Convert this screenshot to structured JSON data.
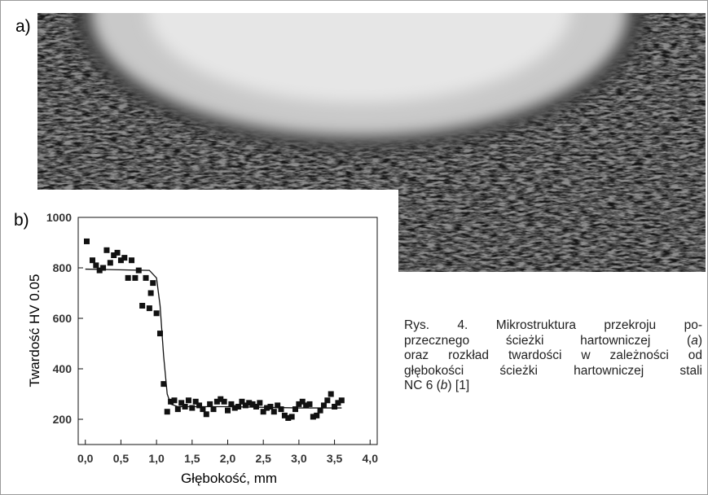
{
  "figure": {
    "label_a": "a)",
    "label_b": "b)",
    "caption": [
      [
        "Rys. 4. Mikrostruktura przekroju po-"
      ],
      [
        "przecznego ścieżki hartowniczej (",
        "a",
        ")"
      ],
      [
        "oraz rozkład twardości w zależności od"
      ],
      [
        "głębokości ścieżki hartowniczej stali"
      ],
      [
        "NC 6 (",
        "b",
        ") [1]"
      ]
    ]
  },
  "chart_data": {
    "type": "scatter",
    "xlabel": "Głębokość, mm",
    "ylabel": "Twardość HV 0.05",
    "xlim": [
      -0.1,
      4.1
    ],
    "ylim": [
      100,
      1000
    ],
    "xticks": [
      {
        "value": 0,
        "label": "0,0"
      },
      {
        "value": 0.5,
        "label": "0,5"
      },
      {
        "value": 1,
        "label": "1,0"
      },
      {
        "value": 1.5,
        "label": "1,5"
      },
      {
        "value": 2,
        "label": "2,0"
      },
      {
        "value": 2.5,
        "label": "2,5"
      },
      {
        "value": 3,
        "label": "3,0"
      },
      {
        "value": 3.5,
        "label": "3,5"
      },
      {
        "value": 4,
        "label": "4,0"
      }
    ],
    "yticks": [
      200,
      400,
      600,
      800,
      1000
    ],
    "series": [
      {
        "mode": "markers",
        "color": "#111111",
        "x": [
          0.02,
          0.1,
          0.15,
          0.2,
          0.25,
          0.3,
          0.35,
          0.4,
          0.45,
          0.5,
          0.55,
          0.6,
          0.65,
          0.7,
          0.75,
          0.8,
          0.85,
          0.9,
          0.92,
          0.95,
          1.0,
          1.05,
          1.1,
          1.15,
          1.2,
          1.25,
          1.3,
          1.35,
          1.4,
          1.45,
          1.5,
          1.55,
          1.6,
          1.65,
          1.7,
          1.75,
          1.8,
          1.85,
          1.9,
          1.95,
          2.0,
          2.05,
          2.1,
          2.15,
          2.2,
          2.25,
          2.3,
          2.35,
          2.4,
          2.45,
          2.5,
          2.55,
          2.6,
          2.65,
          2.7,
          2.75,
          2.8,
          2.85,
          2.9,
          2.95,
          3.0,
          3.05,
          3.1,
          3.15,
          3.2,
          3.25,
          3.3,
          3.35,
          3.4,
          3.45,
          3.5,
          3.55,
          3.6
        ],
        "values": [
          905,
          830,
          810,
          790,
          800,
          870,
          820,
          850,
          860,
          830,
          840,
          760,
          830,
          760,
          790,
          650,
          760,
          640,
          700,
          740,
          620,
          540,
          340,
          230,
          270,
          275,
          240,
          265,
          250,
          275,
          245,
          270,
          255,
          240,
          220,
          260,
          240,
          270,
          280,
          270,
          235,
          260,
          245,
          250,
          270,
          255,
          265,
          260,
          250,
          265,
          230,
          245,
          250,
          230,
          255,
          240,
          215,
          205,
          210,
          240,
          260,
          270,
          255,
          260,
          210,
          215,
          235,
          255,
          275,
          300,
          250,
          265,
          275
        ]
      },
      {
        "mode": "line",
        "color": "#111111",
        "x": [
          0,
          0.9,
          1.0,
          1.05,
          1.1,
          1.15,
          1.2,
          1.3,
          2.0,
          3.0,
          3.6
        ],
        "values": [
          795,
          790,
          760,
          650,
          450,
          300,
          260,
          250,
          250,
          245,
          245
        ]
      }
    ]
  }
}
